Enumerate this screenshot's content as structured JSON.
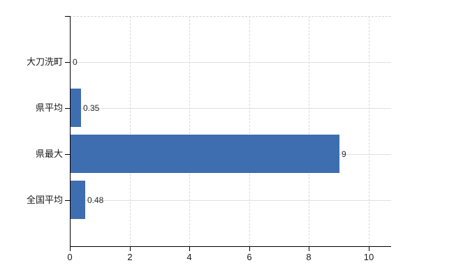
{
  "chart_data": {
    "type": "bar",
    "orientation": "horizontal",
    "title": "",
    "xlabel": "",
    "ylabel": "",
    "categories": [
      "大刀洗町",
      "県平均",
      "県最大",
      "全国平均"
    ],
    "values": [
      0,
      0.35,
      9,
      0.48
    ],
    "value_labels": [
      "0",
      "0.35",
      "9",
      "0.48"
    ],
    "xticks": [
      0,
      2,
      4,
      6,
      8,
      10
    ],
    "xtick_labels": [
      "0",
      "2",
      "4",
      "6",
      "8",
      "10"
    ],
    "xlim": [
      0,
      10.75
    ],
    "grid": true,
    "legend": false,
    "colors": {
      "bar": "#3e6db0",
      "axis": "#000000",
      "gridline_horizontal": "#dde2dc",
      "gridline_vertical": "#d8d8d8",
      "top_border": "#d3d2d3",
      "text": "#1a1a1a",
      "background": "#ffffff"
    }
  }
}
